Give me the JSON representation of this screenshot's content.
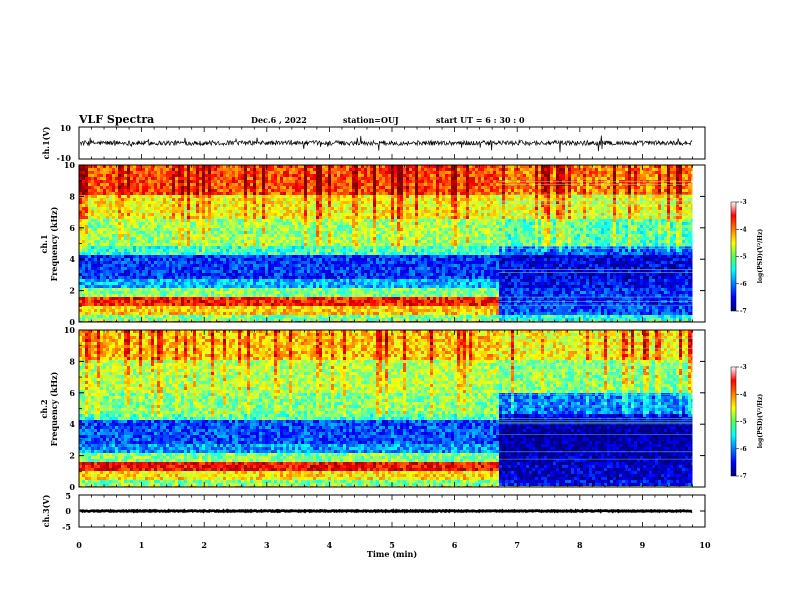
{
  "header": {
    "title": "VLF Spectra",
    "date": "Dec.6 , 2022",
    "station": "station=OUJ",
    "start": "start UT = 6 : 30 : 0"
  },
  "chart_data": [
    {
      "type": "line",
      "name": "ch1-waveform",
      "ylabel": "ch.1(V)",
      "ylim": [
        -10,
        10
      ],
      "yticks": [
        "10",
        "-10"
      ],
      "xlim": [
        0,
        10
      ],
      "data_end_min": 9.8,
      "baseline_v": 0,
      "noise_amplitude_v": 1.5,
      "spike_max_v": 6
    },
    {
      "type": "heatmap",
      "name": "ch1-spectrogram",
      "ylabel": "ch.1\nFrequency (kHz)",
      "ylabel_line1": "ch.1",
      "ylabel_line2": "Frequency (kHz)",
      "ylim": [
        0,
        10
      ],
      "yticks": [
        "0",
        "2",
        "4",
        "6",
        "8",
        "10"
      ],
      "xlim": [
        0,
        10
      ],
      "data_end_min": 9.8,
      "transition_min": 6.7,
      "colorbar": {
        "label": "log(PSD)(V²/Hz)",
        "ticks": [
          "-3",
          "-4",
          "-5",
          "-6",
          "-7"
        ],
        "range": [
          -7,
          -3
        ]
      },
      "bands_khz": [
        {
          "from": 0,
          "to": 0.5,
          "level_before": -5.0,
          "level_after": -5.4
        },
        {
          "from": 0.5,
          "to": 1.0,
          "level_before": -4.3,
          "level_after": -6.2
        },
        {
          "from": 1.0,
          "to": 1.6,
          "level_before": -3.6,
          "level_after": -6.4
        },
        {
          "from": 1.6,
          "to": 2.1,
          "level_before": -5.0,
          "level_after": -6.3
        },
        {
          "from": 2.1,
          "to": 2.8,
          "level_before": -5.8,
          "level_after": -6.5
        },
        {
          "from": 2.8,
          "to": 4.3,
          "level_before": -6.3,
          "level_after": -6.6
        },
        {
          "from": 4.3,
          "to": 4.8,
          "level_before": -5.3,
          "level_after": -6.1
        },
        {
          "from": 4.8,
          "to": 6.5,
          "level_before": -4.9,
          "level_after": -5.2
        },
        {
          "from": 6.5,
          "to": 8.0,
          "level_before": -4.5,
          "level_after": -4.6
        },
        {
          "from": 8.0,
          "to": 10.0,
          "level_before": -3.8,
          "level_after": -4.0
        }
      ]
    },
    {
      "type": "heatmap",
      "name": "ch2-spectrogram",
      "ylabel_line1": "ch.2",
      "ylabel_line2": "Frequency (kHz)",
      "ylim": [
        0,
        10
      ],
      "yticks": [
        "0",
        "2",
        "4",
        "6",
        "8",
        "10"
      ],
      "xlim": [
        0,
        10
      ],
      "data_end_min": 9.8,
      "transition_min": 6.7,
      "colorbar": {
        "label": "log(PSD)(V²/Hz)",
        "ticks": [
          "-3",
          "-4",
          "-5",
          "-6",
          "-7"
        ],
        "range": [
          -7,
          -3
        ]
      },
      "bands_khz": [
        {
          "from": 0,
          "to": 0.5,
          "level_before": -5.0,
          "level_after": -6.5
        },
        {
          "from": 0.5,
          "to": 1.0,
          "level_before": -4.4,
          "level_after": -6.7
        },
        {
          "from": 1.0,
          "to": 1.6,
          "level_before": -3.5,
          "level_after": -6.7
        },
        {
          "from": 1.6,
          "to": 2.1,
          "level_before": -5.0,
          "level_after": -6.8
        },
        {
          "from": 2.1,
          "to": 2.8,
          "level_before": -5.9,
          "level_after": -6.9
        },
        {
          "from": 2.8,
          "to": 4.2,
          "level_before": -6.2,
          "level_after": -6.9
        },
        {
          "from": 4.2,
          "to": 4.6,
          "level_before": -5.2,
          "level_after": -6.6
        },
        {
          "from": 4.6,
          "to": 6.0,
          "level_before": -5.0,
          "level_after": -6.0
        },
        {
          "from": 6.0,
          "to": 8.0,
          "level_before": -4.8,
          "level_after": -5.0
        },
        {
          "from": 8.0,
          "to": 10.0,
          "level_before": -4.3,
          "level_after": -4.5
        }
      ]
    },
    {
      "type": "line",
      "name": "ch3-waveform",
      "ylabel": "ch.3(V)",
      "ylim": [
        -5,
        5
      ],
      "yticks": [
        "5",
        "0",
        "-5"
      ],
      "xlim": [
        0,
        10
      ],
      "data_end_min": 9.8,
      "baseline_v": 0,
      "noise_amplitude_v": 0.15
    }
  ],
  "xaxis": {
    "label": "Time (min)",
    "ticks": [
      "0",
      "1",
      "2",
      "3",
      "4",
      "5",
      "6",
      "7",
      "8",
      "9",
      "10"
    ]
  }
}
